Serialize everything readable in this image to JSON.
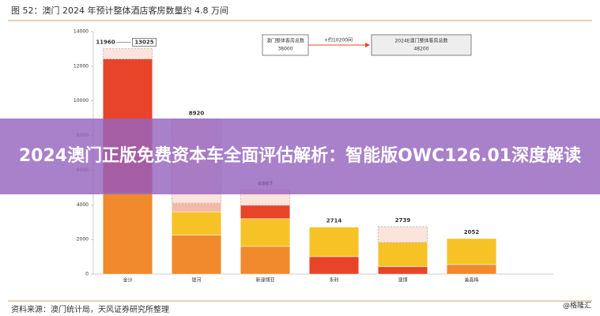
{
  "chart_data": {
    "type": "stacked_bar",
    "title": "图 52：澳门 2024 年预计整体酒店客房数量约 4.8 万间",
    "source": "资料来源：澳门统计局，天风证券研究所整理",
    "watermark": "@格隆汇",
    "categories": [
      "金沙",
      "银河",
      "新濠博亚",
      "永利",
      "澳博",
      "美高梅"
    ],
    "series": [
      {
        "colors": [
          "#f08a2c",
          "#f08a2c",
          "#f08a2c",
          "#e8442a",
          "#e8442a",
          "#f08a2c"
        ],
        "values": [
          4660,
          2250,
          1600,
          1008,
          431,
          552
        ]
      },
      {
        "colors": [
          "#e8442a",
          "#f6c226",
          "#f6c226",
          "#f6c226",
          "#f6c226",
          "#f6c226"
        ],
        "values": [
          7760,
          1350,
          1600,
          1706,
          1400,
          1500
        ]
      },
      {
        "colors": [
          "#f4b9a8",
          "#f4b9a8",
          "#e8442a",
          "#f4b9a8",
          "#f4b9a8",
          "#f4b9a8"
        ],
        "values": [
          null,
          500,
          772,
          null,
          null,
          null
        ]
      },
      {
        "colors": [
          "#fbe4dc",
          "#fbe4dc",
          "#fbe4dc",
          "#fbe4dc",
          "#fbe4dc",
          "#fbe4dc"
        ],
        "dashed": true,
        "values": [
          605,
          4820,
          895,
          null,
          908,
          null
        ]
      }
    ],
    "totals": [
      13025,
      8920,
      4867,
      2714,
      2739,
      2052
    ],
    "previous_total": 11960,
    "annotations": {
      "current_label": "澳门整体客房总数",
      "current_value": 38000,
      "delta": "+约10200间",
      "future_label": "2024E澳门整体客房总数",
      "future_value": 48200
    },
    "ylim": [
      0,
      14000
    ],
    "yticks": [
      0,
      2000,
      4000,
      6000,
      8000,
      10000,
      12000,
      14000
    ],
    "banner": "2024澳门正版免费资本车全面评估解析：智能版OWC126.01深度解读"
  }
}
